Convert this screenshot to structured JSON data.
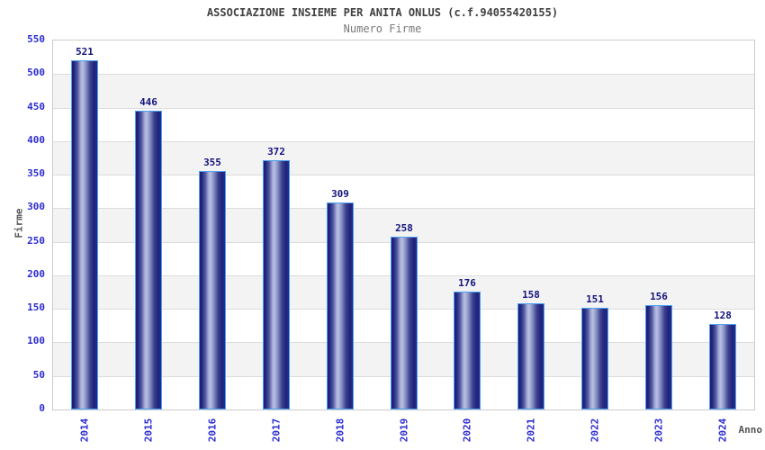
{
  "header": {
    "title": "ASSOCIAZIONE INSIEME PER ANITA ONLUS (c.f.94055420155)",
    "subtitle": "Numero Firme"
  },
  "chart_data": {
    "type": "bar",
    "title": "ASSOCIAZIONE INSIEME PER ANITA ONLUS (c.f.94055420155)",
    "subtitle": "Numero Firme",
    "categories": [
      "2014",
      "2015",
      "2016",
      "2017",
      "2018",
      "2019",
      "2020",
      "2021",
      "2022",
      "2023",
      "2024"
    ],
    "values": [
      521,
      446,
      355,
      372,
      309,
      258,
      176,
      158,
      151,
      156,
      128
    ],
    "xlabel": "Anno",
    "ylabel": "Firme",
    "ylim": [
      0,
      550
    ],
    "ytick_step": 50,
    "legend": "none",
    "grid": "horizontal-bands",
    "colors": {
      "bar_dark": "#1b1b75",
      "bar_highlight": "#b7bfe0",
      "bar_border": "#4da1f0",
      "axis_text": "#2b2bd0",
      "value_label": "#14147d",
      "band_gray": "#f3f3f3",
      "band_white": "#ffffff",
      "gridline": "#dcdcdc",
      "plot_border": "#cccccc",
      "title_color": "#404040",
      "subtitle_color": "#7a7a7a",
      "axis_title_color": "#555555"
    }
  }
}
